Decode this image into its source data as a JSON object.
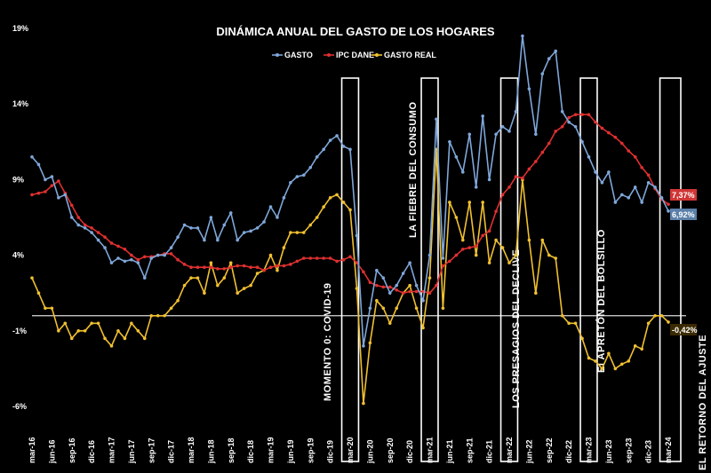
{
  "chart_data": {
    "type": "line",
    "title": "DINÁMICA ANUAL DEL GASTO DE LOS HOGARES",
    "yticks": [
      "19%",
      "14%",
      "9%",
      "4%",
      "-1%",
      "-6%"
    ],
    "ytick_values": [
      19,
      14,
      9,
      4,
      -1,
      -6
    ],
    "ylim": [
      -6,
      19
    ],
    "x": [
      "mar-16",
      "abr-16",
      "may-16",
      "jun-16",
      "jul-16",
      "ago-16",
      "sep-16",
      "oct-16",
      "nov-16",
      "dic-16",
      "ene-17",
      "feb-17",
      "mar-17",
      "abr-17",
      "may-17",
      "jun-17",
      "jul-17",
      "ago-17",
      "sep-17",
      "oct-17",
      "nov-17",
      "dic-17",
      "ene-18",
      "feb-18",
      "mar-18",
      "abr-18",
      "may-18",
      "jun-18",
      "jul-18",
      "ago-18",
      "sep-18",
      "oct-18",
      "nov-18",
      "dic-18",
      "ene-19",
      "feb-19",
      "mar-19",
      "abr-19",
      "may-19",
      "jun-19",
      "jul-19",
      "ago-19",
      "sep-19",
      "oct-19",
      "nov-19",
      "dic-19",
      "ene-20",
      "feb-20",
      "mar-20",
      "abr-20",
      "may-20",
      "jun-20",
      "jul-20",
      "ago-20",
      "sep-20",
      "oct-20",
      "nov-20",
      "dic-20",
      "ene-21",
      "feb-21",
      "mar-21",
      "abr-21",
      "may-21",
      "jun-21",
      "jul-21",
      "ago-21",
      "sep-21",
      "oct-21",
      "nov-21",
      "dic-21",
      "ene-22",
      "feb-22",
      "mar-22",
      "abr-22",
      "may-22",
      "jun-22",
      "jul-22",
      "ago-22",
      "sep-22",
      "oct-22",
      "nov-22",
      "dic-22",
      "ene-23",
      "feb-23",
      "mar-23",
      "abr-23",
      "may-23",
      "jun-23",
      "jul-23",
      "ago-23",
      "sep-23",
      "oct-23",
      "nov-23",
      "dic-23",
      "ene-24",
      "feb-24",
      "mar-24"
    ],
    "xtick_labels": [
      "mar-16",
      "jun-16",
      "sep-16",
      "dic-16",
      "mar-17",
      "jun-17",
      "sep-17",
      "dic-17",
      "mar-18",
      "jun-18",
      "sep-18",
      "dic-18",
      "mar-19",
      "jun-19",
      "sep-19",
      "dic-19",
      "mar-20",
      "jun-20",
      "sep-20",
      "dic-20",
      "mar-21",
      "jun-21",
      "sep-21",
      "dic-21",
      "mar-22",
      "jun-22",
      "sep-22",
      "dic-22",
      "mar-23",
      "jun-23",
      "sep-23",
      "dic-23",
      "mar-24"
    ],
    "series": [
      {
        "name": "GASTO",
        "color": "#7fa7d9",
        "values": [
          10.5,
          10.0,
          9.0,
          9.2,
          7.8,
          8.0,
          6.5,
          6.0,
          5.8,
          5.5,
          5.0,
          4.5,
          3.5,
          3.8,
          3.6,
          3.7,
          3.5,
          2.5,
          3.8,
          4.0,
          4.0,
          4.5,
          5.2,
          6.0,
          5.8,
          5.8,
          5.0,
          6.5,
          5.0,
          6.0,
          6.8,
          5.0,
          5.5,
          5.6,
          5.8,
          6.2,
          7.2,
          6.5,
          7.8,
          8.8,
          9.2,
          9.3,
          9.8,
          10.5,
          11.0,
          11.6,
          11.9,
          11.2,
          11.0,
          5.3,
          -2.0,
          0.5,
          3.0,
          2.5,
          1.5,
          2.0,
          2.8,
          3.5,
          2.0,
          1.0,
          4.0,
          13.0,
          3.8,
          11.5,
          10.5,
          9.5,
          12.0,
          8.5,
          13.2,
          9.0,
          12.0,
          12.5,
          12.2,
          13.5,
          18.5,
          15.0,
          12.0,
          16.0,
          17.0,
          17.5,
          13.5,
          12.8,
          12.5,
          11.5,
          10.5,
          9.5,
          8.8,
          9.5,
          7.5,
          8.0,
          7.8,
          8.5,
          7.5,
          8.8,
          8.5,
          7.8,
          6.92
        ]
      },
      {
        "name": "IPC DANE",
        "color": "#e03030",
        "values": [
          8.0,
          8.1,
          8.2,
          8.6,
          8.9,
          8.1,
          7.3,
          6.5,
          6.0,
          5.8,
          5.5,
          5.2,
          4.8,
          4.6,
          4.4,
          4.0,
          3.7,
          3.9,
          3.9,
          4.0,
          4.1,
          4.1,
          3.7,
          3.4,
          3.2,
          3.2,
          3.2,
          3.2,
          3.1,
          3.1,
          3.2,
          3.3,
          3.3,
          3.2,
          3.2,
          3.0,
          3.2,
          3.3,
          3.3,
          3.4,
          3.6,
          3.8,
          3.8,
          3.8,
          3.8,
          3.8,
          3.6,
          3.7,
          3.9,
          3.5,
          2.9,
          2.2,
          2.0,
          1.9,
          1.9,
          1.7,
          1.5,
          1.6,
          1.6,
          1.6,
          1.5,
          2.0,
          3.3,
          3.6,
          4.0,
          4.4,
          4.5,
          4.6,
          5.3,
          5.6,
          6.9,
          8.0,
          8.5,
          9.2,
          9.1,
          9.7,
          10.2,
          10.8,
          11.4,
          12.2,
          12.5,
          13.1,
          13.3,
          13.3,
          13.3,
          12.8,
          12.4,
          12.1,
          11.8,
          11.4,
          10.9,
          10.5,
          9.8,
          9.3,
          8.4,
          7.7,
          7.37
        ]
      },
      {
        "name": "GASTO REAL",
        "color": "#f0c030",
        "values": [
          2.5,
          1.5,
          0.5,
          0.5,
          -1.0,
          -0.5,
          -1.5,
          -1.0,
          -1.0,
          -0.5,
          -0.5,
          -1.5,
          -2.0,
          -1.0,
          -1.5,
          -0.5,
          -1.0,
          -1.5,
          0.0,
          0.0,
          0.0,
          0.5,
          1.0,
          2.0,
          2.5,
          2.5,
          1.5,
          3.5,
          2.0,
          2.5,
          3.5,
          1.5,
          1.8,
          2.0,
          2.8,
          3.0,
          4.0,
          3.0,
          4.5,
          5.5,
          5.5,
          5.5,
          6.0,
          6.5,
          7.2,
          7.8,
          8.0,
          7.5,
          7.0,
          1.8,
          -5.8,
          -1.8,
          1.0,
          0.5,
          -0.5,
          0.5,
          1.5,
          2.0,
          0.5,
          -0.8,
          2.5,
          11.0,
          0.5,
          7.5,
          6.5,
          5.0,
          7.5,
          4.0,
          7.5,
          3.5,
          5.0,
          4.5,
          3.5,
          4.0,
          9.0,
          5.0,
          1.5,
          5.0,
          4.0,
          3.8,
          0.0,
          -0.5,
          -0.5,
          -1.5,
          -2.8,
          -3.0,
          -3.5,
          -2.5,
          -3.5,
          -3.2,
          -3.0,
          -2.0,
          -2.2,
          -0.5,
          0.0,
          0.0,
          -0.42
        ]
      }
    ],
    "end_labels": [
      {
        "series": "IPC DANE",
        "text": "7,37%",
        "bg": "#d13535",
        "fg": "#ffffff"
      },
      {
        "series": "GASTO",
        "text": "6,92%",
        "bg": "#5b7fa8",
        "fg": "#ffffff"
      },
      {
        "series": "GASTO REAL",
        "text": "-0,42%",
        "bg": "#3a2a00",
        "fg": "#ffffff"
      }
    ],
    "hline_value": 0,
    "annotations": [
      {
        "text": "MOMENTO 0: COVID-19",
        "box_from": "feb-20",
        "box_to": "abr-20"
      },
      {
        "text": "LA FIEBRE DEL CONSUMO",
        "box_from": "feb-21",
        "box_to": "abr-21"
      },
      {
        "text": "LOS PRESAGIOS DEL DECLIVE",
        "box_from": "feb-22",
        "box_to": "abr-22"
      },
      {
        "text": "El APRETÓN DEL BOLSILLO",
        "box_from": "feb-23",
        "box_to": "abr-23"
      },
      {
        "text": "EL RETORNO DEL AJUSTE",
        "box_from": "feb-24",
        "box_to": "abr-24"
      }
    ],
    "legend_position": "top-center",
    "grid": false
  }
}
